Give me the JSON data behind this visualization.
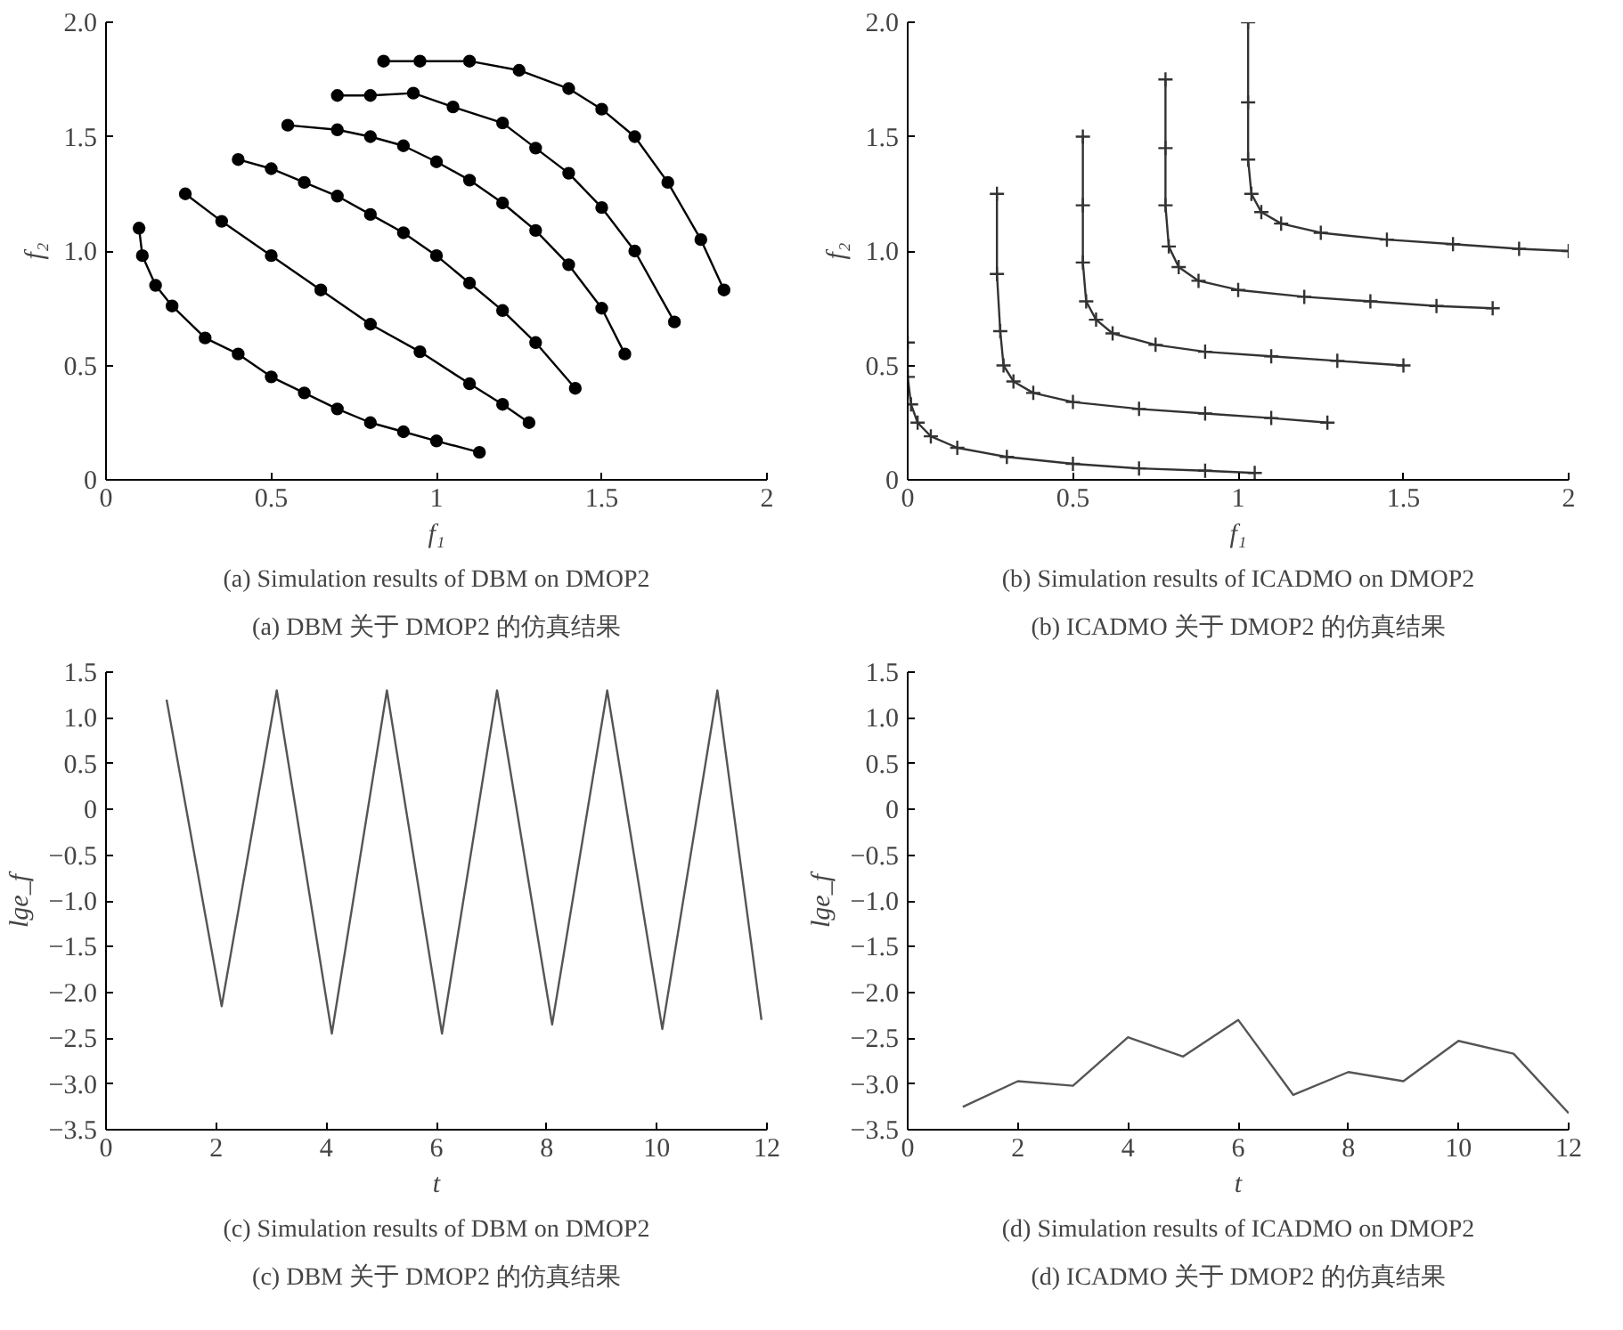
{
  "chart_data": [
    {
      "type": "line",
      "marker": "circle",
      "xlabel": "f₁",
      "ylabel": "f₂",
      "xlim": [
        0,
        2
      ],
      "ylim": [
        0,
        2
      ],
      "xticks": [
        0,
        0.5,
        1,
        1.5,
        2
      ],
      "yticks": [
        0,
        {
          "value": 0.5,
          "label": "0.5"
        },
        {
          "value": 1,
          "label": "1.0"
        },
        1.5,
        {
          "value": 2,
          "label": "2.0"
        }
      ],
      "grid": false,
      "annotations": [
        "(a) Simulation results of DBM on DMOP2",
        "(a) DBM 关于 DMOP2 的仿真结果"
      ],
      "series": [
        {
          "color": "#000000",
          "x": [
            0.1,
            0.11,
            0.15,
            0.2,
            0.3,
            0.4,
            0.5,
            0.6,
            0.7,
            0.8,
            0.9,
            1.0,
            1.13
          ],
          "values": [
            1.1,
            0.98,
            0.85,
            0.76,
            0.62,
            0.55,
            0.45,
            0.38,
            0.31,
            0.25,
            0.21,
            0.17,
            0.12
          ]
        },
        {
          "color": "#000000",
          "x": [
            0.24,
            0.35,
            0.5,
            0.65,
            0.8,
            0.95,
            1.1,
            1.2,
            1.28
          ],
          "values": [
            1.25,
            1.13,
            0.98,
            0.83,
            0.68,
            0.56,
            0.42,
            0.33,
            0.25
          ]
        },
        {
          "color": "#000000",
          "x": [
            0.4,
            0.5,
            0.6,
            0.7,
            0.8,
            0.9,
            1.0,
            1.1,
            1.2,
            1.3,
            1.42
          ],
          "values": [
            1.4,
            1.36,
            1.3,
            1.24,
            1.16,
            1.08,
            0.98,
            0.86,
            0.74,
            0.6,
            0.4
          ]
        },
        {
          "color": "#000000",
          "x": [
            0.55,
            0.7,
            0.8,
            0.9,
            1.0,
            1.1,
            1.2,
            1.3,
            1.4,
            1.5,
            1.57
          ],
          "values": [
            1.55,
            1.53,
            1.5,
            1.46,
            1.39,
            1.31,
            1.21,
            1.09,
            0.94,
            0.75,
            0.55
          ]
        },
        {
          "color": "#000000",
          "x": [
            0.7,
            0.8,
            0.93,
            1.05,
            1.2,
            1.3,
            1.4,
            1.5,
            1.6,
            1.72
          ],
          "values": [
            1.68,
            1.68,
            1.69,
            1.63,
            1.56,
            1.45,
            1.34,
            1.19,
            1.0,
            0.69
          ]
        },
        {
          "color": "#000000",
          "x": [
            0.84,
            0.95,
            1.1,
            1.25,
            1.4,
            1.5,
            1.6,
            1.7,
            1.8,
            1.87
          ],
          "values": [
            1.83,
            1.83,
            1.83,
            1.79,
            1.71,
            1.62,
            1.5,
            1.3,
            1.05,
            0.83
          ]
        }
      ]
    },
    {
      "type": "line",
      "marker": "cross",
      "xlabel": "f₁",
      "ylabel": "f₂",
      "xlim": [
        0,
        2
      ],
      "ylim": [
        0,
        2
      ],
      "xticks": [
        0,
        0.5,
        1,
        1.5,
        2
      ],
      "yticks": [
        0,
        {
          "value": 0.5,
          "label": "0.5"
        },
        {
          "value": 1,
          "label": "1.0"
        },
        1.5,
        {
          "value": 2,
          "label": "2.0"
        }
      ],
      "grid": false,
      "annotations": [
        "(b) Simulation results of ICADMO on DMOP2",
        "(b) ICADMO 关于 DMOP2 的仿真结果"
      ],
      "series": [
        {
          "color": "#333333",
          "x": [
            0,
            0,
            0.01,
            0.03,
            0.07,
            0.15,
            0.3,
            0.5,
            0.7,
            0.9,
            1.05
          ],
          "values": [
            0.6,
            0.45,
            0.33,
            0.25,
            0.19,
            0.14,
            0.1,
            0.07,
            0.05,
            0.04,
            0.03
          ]
        },
        {
          "color": "#333333",
          "x": [
            0.27,
            0.27,
            0.28,
            0.29,
            0.32,
            0.38,
            0.5,
            0.7,
            0.9,
            1.1,
            1.27
          ],
          "values": [
            1.25,
            0.9,
            0.65,
            0.5,
            0.43,
            0.38,
            0.34,
            0.31,
            0.29,
            0.27,
            0.25
          ]
        },
        {
          "color": "#333333",
          "x": [
            0.53,
            0.53,
            0.53,
            0.54,
            0.57,
            0.62,
            0.75,
            0.9,
            1.1,
            1.3,
            1.5
          ],
          "values": [
            1.5,
            1.2,
            0.95,
            0.78,
            0.7,
            0.64,
            0.59,
            0.56,
            0.54,
            0.52,
            0.5
          ]
        },
        {
          "color": "#333333",
          "x": [
            0.78,
            0.78,
            0.78,
            0.79,
            0.82,
            0.88,
            1.0,
            1.2,
            1.4,
            1.6,
            1.77
          ],
          "values": [
            1.75,
            1.45,
            1.2,
            1.02,
            0.93,
            0.87,
            0.83,
            0.8,
            0.78,
            0.76,
            0.75
          ]
        },
        {
          "color": "#333333",
          "x": [
            1.03,
            1.03,
            1.03,
            1.04,
            1.07,
            1.13,
            1.25,
            1.45,
            1.65,
            1.85,
            2.0
          ],
          "values": [
            2.0,
            1.65,
            1.4,
            1.25,
            1.17,
            1.12,
            1.08,
            1.05,
            1.03,
            1.01,
            1.0
          ]
        }
      ]
    },
    {
      "type": "line",
      "xlabel": "t",
      "ylabel": "lge_f",
      "xlim": [
        0,
        12
      ],
      "ylim": [
        -3.5,
        1.5
      ],
      "xticks": [
        0,
        2,
        4,
        6,
        8,
        10,
        12
      ],
      "yticks": [
        {
          "value": -3.5,
          "label": "−3.5"
        },
        {
          "value": -3,
          "label": "−3.0"
        },
        {
          "value": -2.5,
          "label": "−2.5"
        },
        {
          "value": -2,
          "label": "−2.0"
        },
        {
          "value": -1.5,
          "label": "−1.5"
        },
        {
          "value": -1,
          "label": "−1.0"
        },
        {
          "value": -0.5,
          "label": "−0.5"
        },
        0,
        0.5,
        {
          "value": 1,
          "label": "1.0"
        },
        1.5
      ],
      "grid": false,
      "annotations": [
        "(c) Simulation results of DBM on DMOP2",
        "(c) DBM 关于 DMOP2 的仿真结果"
      ],
      "series": [
        {
          "color": "#555555",
          "x": [
            1.1,
            2.1,
            3.1,
            4.1,
            5.1,
            6.1,
            7.1,
            8.1,
            9.1,
            10.1,
            11.1,
            11.9
          ],
          "values": [
            1.2,
            -2.15,
            1.3,
            -2.45,
            1.3,
            -2.45,
            1.3,
            -2.35,
            1.3,
            -2.4,
            1.3,
            -2.3
          ]
        }
      ]
    },
    {
      "type": "line",
      "xlabel": "t",
      "ylabel": "lge_f",
      "xlim": [
        0,
        12
      ],
      "ylim": [
        -3.5,
        1.5
      ],
      "xticks": [
        0,
        2,
        4,
        6,
        8,
        10,
        12
      ],
      "yticks": [
        {
          "value": -3.5,
          "label": "−3.5"
        },
        {
          "value": -3,
          "label": "−3.0"
        },
        {
          "value": -2.5,
          "label": "−2.5"
        },
        {
          "value": -2,
          "label": "−2.0"
        },
        {
          "value": -1.5,
          "label": "−1.5"
        },
        {
          "value": -1,
          "label": "−1.0"
        },
        {
          "value": -0.5,
          "label": "−0.5"
        },
        0,
        0.5,
        {
          "value": 1,
          "label": "1.0"
        },
        1.5
      ],
      "grid": false,
      "annotations": [
        "(d) Simulation results of ICADMO on DMOP2",
        "(d) ICADMO 关于 DMOP2 的仿真结果"
      ],
      "series": [
        {
          "color": "#555555",
          "x": [
            1,
            2,
            3,
            4,
            5,
            6,
            7,
            8,
            9,
            10,
            11,
            12
          ],
          "values": [
            -3.25,
            -2.97,
            -3.02,
            -2.49,
            -2.7,
            -2.3,
            -3.12,
            -2.87,
            -2.97,
            -2.53,
            -2.67,
            -3.32
          ]
        }
      ]
    }
  ]
}
